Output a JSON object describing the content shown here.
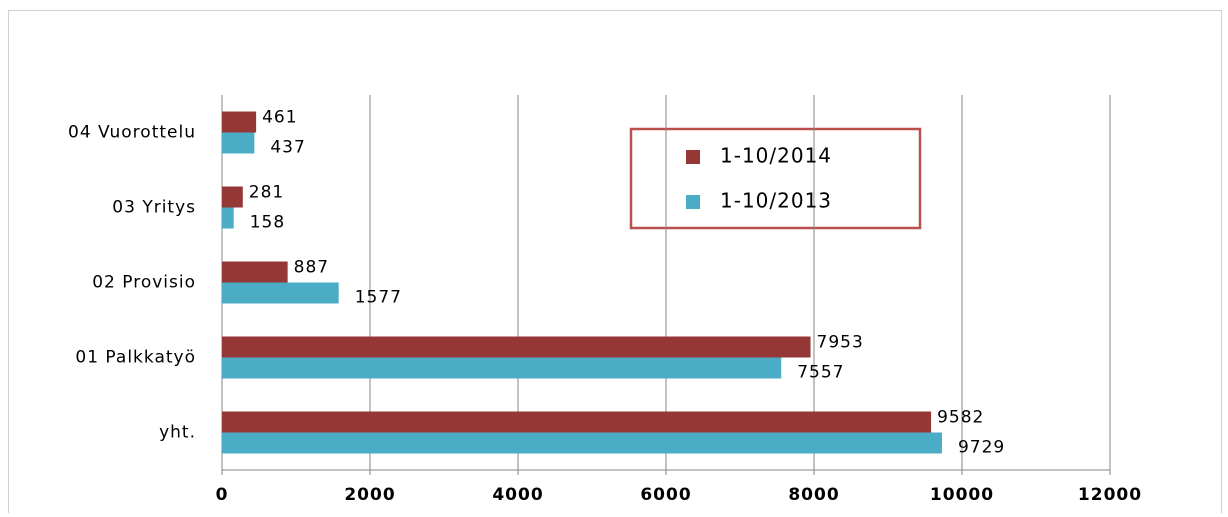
{
  "chart_data": {
    "type": "bar",
    "orientation": "horizontal",
    "categories": [
      "04 Vuorottelu",
      "03 Yritys",
      "02 Provisio",
      "01 Palkkatyö",
      "yht."
    ],
    "series": [
      {
        "name": "1-10/2014",
        "color": "#953735",
        "values": [
          461,
          281,
          887,
          7953,
          9582
        ]
      },
      {
        "name": "1-10/2013",
        "color": "#4bacc6",
        "values": [
          437,
          158,
          1577,
          7557,
          9729
        ]
      }
    ],
    "xlim": [
      0,
      12000
    ],
    "xticks": [
      0,
      2000,
      4000,
      6000,
      8000,
      10000,
      12000
    ],
    "grid": true
  }
}
